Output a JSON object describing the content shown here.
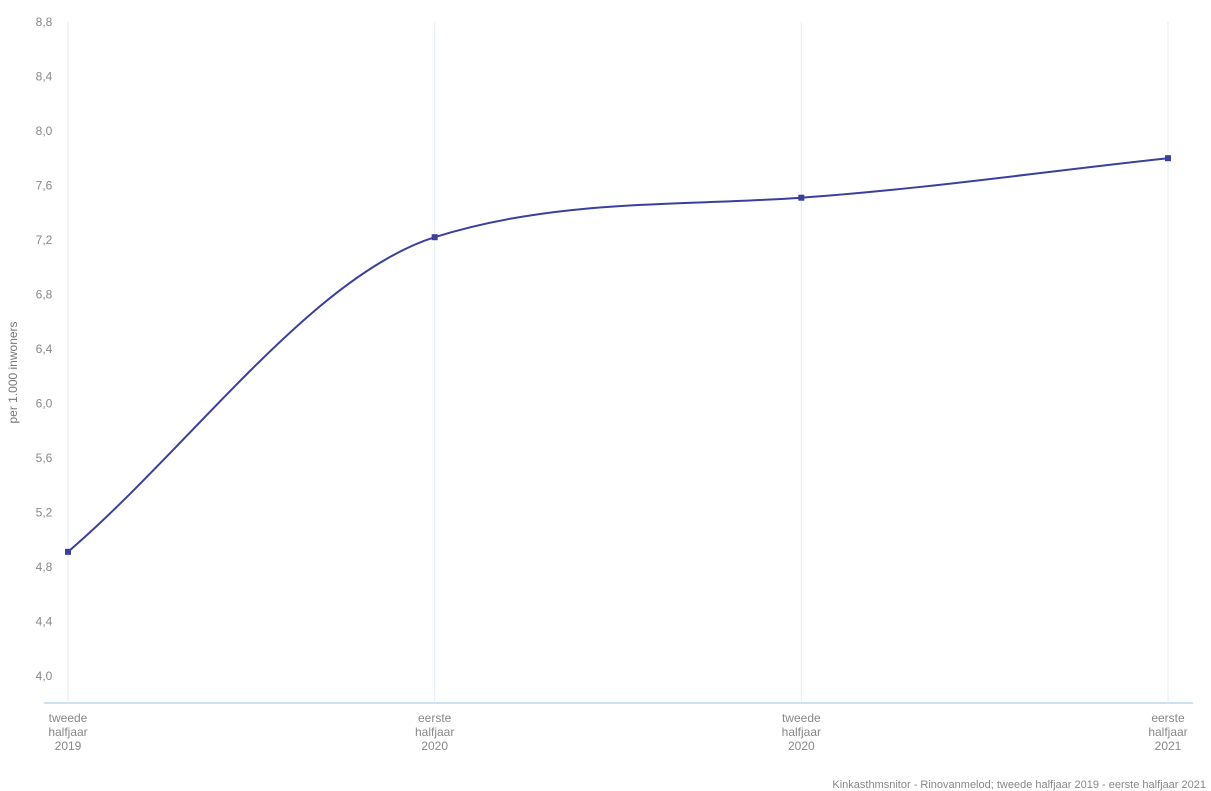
{
  "chart_data": {
    "type": "line",
    "title": "",
    "xlabel": "",
    "ylabel": "per 1.000 inwoners",
    "ylim": [
      3.8,
      8.8
    ],
    "yticks": [
      "8,8",
      "8,4",
      "8,0",
      "7,6",
      "7,2",
      "6,8",
      "6,4",
      "6,0",
      "5,6",
      "5,2",
      "4,8",
      "4,4",
      "4,0"
    ],
    "yticks_values": [
      8.8,
      8.4,
      8.0,
      7.6,
      7.2,
      6.8,
      6.4,
      6.0,
      5.6,
      5.2,
      4.8,
      4.4,
      4.0
    ],
    "categories": [
      [
        "tweede",
        "halfjaar",
        "2019"
      ],
      [
        "eerste",
        "halfjaar",
        "2020"
      ],
      [
        "tweede",
        "halfjaar",
        "2020"
      ],
      [
        "eerste",
        "halfjaar",
        "2021"
      ]
    ],
    "series": [
      {
        "values": [
          4.91,
          7.22,
          7.51,
          7.8
        ]
      }
    ],
    "grid": "vertical",
    "line_color": "#3a3fa0",
    "grid_color": "#e6eef5",
    "axis_color": "#cfe0ee",
    "source": "Kinkasthmsnitor - Rinovanmelod; tweede halfjaar 2019 - eerste halfjaar 2021"
  }
}
